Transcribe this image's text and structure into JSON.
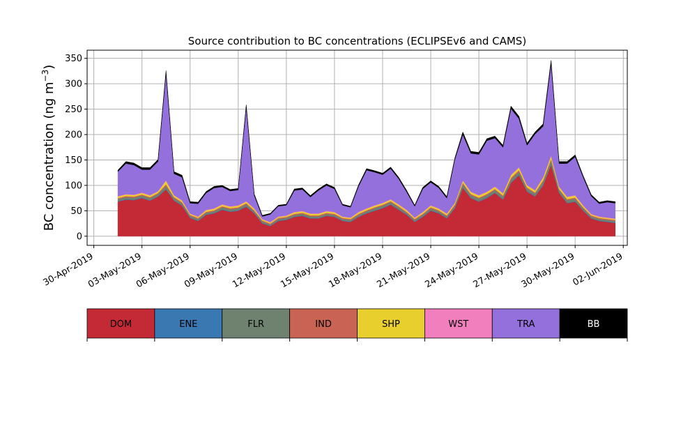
{
  "chart_data": {
    "type": "area",
    "title": "Source contribution to BC concentrations (ECLIPSEv6 and CAMS)",
    "ylabel": "BC concentration (ng m⁻³)",
    "ylabel_main": "BC concentration (ng m",
    "ylabel_sup": "−3",
    "ylabel_close": ")",
    "xlabel": "",
    "stacked": true,
    "grid": true,
    "ylim": [
      -18,
      366
    ],
    "yticks": [
      0,
      50,
      100,
      150,
      200,
      250,
      300,
      350
    ],
    "xlim": [
      "2019-04-29T14:00",
      "2019-06-02T06:00"
    ],
    "xticks": [
      "2019-04-30",
      "2019-05-03",
      "2019-05-06",
      "2019-05-09",
      "2019-05-12",
      "2019-05-15",
      "2019-05-18",
      "2019-05-21",
      "2019-05-24",
      "2019-05-27",
      "2019-05-30",
      "2019-06-02"
    ],
    "xtick_labels": [
      "30-Apr-2019",
      "03-May-2019",
      "06-May-2019",
      "09-May-2019",
      "12-May-2019",
      "15-May-2019",
      "18-May-2019",
      "21-May-2019",
      "24-May-2019",
      "27-May-2019",
      "30-May-2019",
      "02-Jun-2019"
    ],
    "x": [
      "2019-05-01T12:00",
      "2019-05-02T00:00",
      "2019-05-02T12:00",
      "2019-05-03T00:00",
      "2019-05-03T12:00",
      "2019-05-04T00:00",
      "2019-05-04T12:00",
      "2019-05-05T00:00",
      "2019-05-05T12:00",
      "2019-05-06T00:00",
      "2019-05-06T12:00",
      "2019-05-07T00:00",
      "2019-05-07T12:00",
      "2019-05-08T00:00",
      "2019-05-08T12:00",
      "2019-05-09T00:00",
      "2019-05-09T12:00",
      "2019-05-10T00:00",
      "2019-05-10T12:00",
      "2019-05-11T00:00",
      "2019-05-11T12:00",
      "2019-05-12T00:00",
      "2019-05-12T12:00",
      "2019-05-13T00:00",
      "2019-05-13T12:00",
      "2019-05-14T00:00",
      "2019-05-14T12:00",
      "2019-05-15T00:00",
      "2019-05-15T12:00",
      "2019-05-16T00:00",
      "2019-05-16T12:00",
      "2019-05-17T00:00",
      "2019-05-17T12:00",
      "2019-05-18T00:00",
      "2019-05-18T12:00",
      "2019-05-19T00:00",
      "2019-05-19T12:00",
      "2019-05-20T00:00",
      "2019-05-20T12:00",
      "2019-05-21T00:00",
      "2019-05-21T12:00",
      "2019-05-22T00:00",
      "2019-05-22T12:00",
      "2019-05-23T00:00",
      "2019-05-23T12:00",
      "2019-05-24T00:00",
      "2019-05-24T12:00",
      "2019-05-25T00:00",
      "2019-05-25T12:00",
      "2019-05-26T00:00",
      "2019-05-26T12:00",
      "2019-05-27T00:00",
      "2019-05-27T12:00",
      "2019-05-28T00:00",
      "2019-05-28T12:00",
      "2019-05-29T00:00",
      "2019-05-29T12:00",
      "2019-05-30T00:00",
      "2019-05-30T12:00",
      "2019-05-31T00:00",
      "2019-05-31T12:00",
      "2019-06-01T00:00",
      "2019-06-01T12:00"
    ],
    "series": [
      {
        "name": "DOM",
        "color": "#c42a36",
        "values": [
          68,
          72,
          71,
          75,
          70,
          78,
          92,
          70,
          60,
          36,
          30,
          42,
          45,
          52,
          48,
          50,
          58,
          45,
          25,
          20,
          30,
          32,
          38,
          40,
          35,
          35,
          40,
          38,
          30,
          28,
          38,
          45,
          50,
          55,
          62,
          52,
          42,
          28,
          38,
          50,
          45,
          35,
          55,
          95,
          75,
          68,
          75,
          85,
          72,
          105,
          120,
          88,
          78,
          100,
          140,
          85,
          65,
          68,
          50,
          35,
          30,
          28,
          26
        ]
      },
      {
        "name": "ENE",
        "color": "#3a78b2",
        "values": [
          1,
          1,
          1,
          1,
          1,
          1,
          1,
          1,
          1,
          1,
          1,
          1,
          1,
          1,
          1,
          1,
          1,
          1,
          1,
          1,
          1,
          1,
          1,
          1,
          1,
          1,
          1,
          1,
          1,
          1,
          1,
          1,
          1,
          1,
          1,
          1,
          1,
          1,
          1,
          1,
          1,
          1,
          1,
          1,
          1,
          1,
          1,
          1,
          1,
          1,
          1,
          1,
          1,
          1,
          1,
          1,
          1,
          1,
          1,
          1,
          1,
          1,
          1
        ]
      },
      {
        "name": "FLR",
        "color": "#6f8270",
        "values": [
          4,
          4,
          4,
          4,
          4,
          4,
          6,
          4,
          4,
          3,
          3,
          3,
          3,
          4,
          4,
          4,
          4,
          3,
          3,
          2,
          3,
          3,
          3,
          3,
          3,
          3,
          3,
          3,
          3,
          3,
          3,
          3,
          4,
          4,
          4,
          4,
          3,
          3,
          3,
          4,
          3,
          3,
          4,
          6,
          5,
          5,
          5,
          5,
          5,
          6,
          6,
          5,
          5,
          6,
          8,
          5,
          5,
          5,
          4,
          3,
          3,
          3,
          3
        ]
      },
      {
        "name": "IND",
        "color": "#c96455",
        "values": [
          2,
          2,
          2,
          2,
          2,
          2,
          3,
          2,
          2,
          2,
          2,
          2,
          2,
          2,
          2,
          2,
          2,
          2,
          2,
          2,
          2,
          2,
          2,
          2,
          2,
          2,
          2,
          2,
          2,
          2,
          2,
          2,
          2,
          2,
          2,
          2,
          2,
          2,
          2,
          2,
          2,
          2,
          2,
          3,
          2,
          2,
          2,
          2,
          2,
          3,
          3,
          2,
          2,
          3,
          3,
          2,
          2,
          2,
          2,
          2,
          2,
          2,
          2
        ]
      },
      {
        "name": "SHP",
        "color": "#e8cf2e",
        "values": [
          3,
          3,
          3,
          3,
          3,
          3,
          7,
          3,
          3,
          2,
          2,
          3,
          3,
          3,
          3,
          3,
          3,
          3,
          2,
          2,
          2,
          2,
          3,
          3,
          3,
          3,
          3,
          3,
          2,
          2,
          3,
          3,
          3,
          3,
          3,
          3,
          3,
          2,
          3,
          3,
          3,
          3,
          3,
          4,
          4,
          4,
          4,
          4,
          4,
          5,
          5,
          4,
          4,
          5,
          6,
          4,
          4,
          4,
          3,
          2,
          2,
          2,
          2
        ]
      },
      {
        "name": "WST",
        "color": "#f27fbd",
        "values": [
          1,
          1,
          1,
          1,
          1,
          1,
          1,
          1,
          1,
          1,
          1,
          1,
          1,
          1,
          1,
          1,
          1,
          1,
          1,
          1,
          1,
          1,
          1,
          1,
          1,
          1,
          1,
          1,
          1,
          1,
          1,
          1,
          1,
          1,
          1,
          1,
          1,
          1,
          1,
          1,
          1,
          1,
          1,
          1,
          1,
          1,
          1,
          1,
          1,
          1,
          1,
          1,
          1,
          1,
          1,
          1,
          1,
          1,
          1,
          1,
          1,
          1,
          1
        ]
      },
      {
        "name": "TRA",
        "color": "#9370db",
        "values": [
          48,
          60,
          58,
          45,
          50,
          58,
          210,
          42,
          45,
          20,
          25,
          33,
          40,
          34,
          30,
          30,
          185,
          25,
          5,
          15,
          20,
          20,
          42,
          42,
          32,
          45,
          50,
          45,
          22,
          20,
          50,
          75,
          65,
          55,
          60,
          50,
          35,
          22,
          45,
          45,
          40,
          30,
          85,
          90,
          75,
          80,
          100,
          95,
          90,
          130,
          95,
          78,
          110,
          100,
          180,
          45,
          65,
          75,
          55,
          35,
          25,
          30,
          30
        ]
      },
      {
        "name": "BB",
        "color": "#000000",
        "values": [
          3,
          4,
          4,
          4,
          4,
          4,
          6,
          4,
          4,
          3,
          3,
          3,
          3,
          3,
          3,
          3,
          5,
          3,
          2,
          2,
          2,
          2,
          3,
          3,
          3,
          3,
          3,
          3,
          2,
          2,
          3,
          3,
          3,
          3,
          3,
          3,
          3,
          2,
          3,
          3,
          3,
          3,
          3,
          5,
          4,
          4,
          4,
          4,
          4,
          5,
          5,
          4,
          4,
          5,
          7,
          4,
          4,
          4,
          3,
          3,
          3,
          3,
          3
        ]
      }
    ],
    "legend_placement": "below"
  }
}
